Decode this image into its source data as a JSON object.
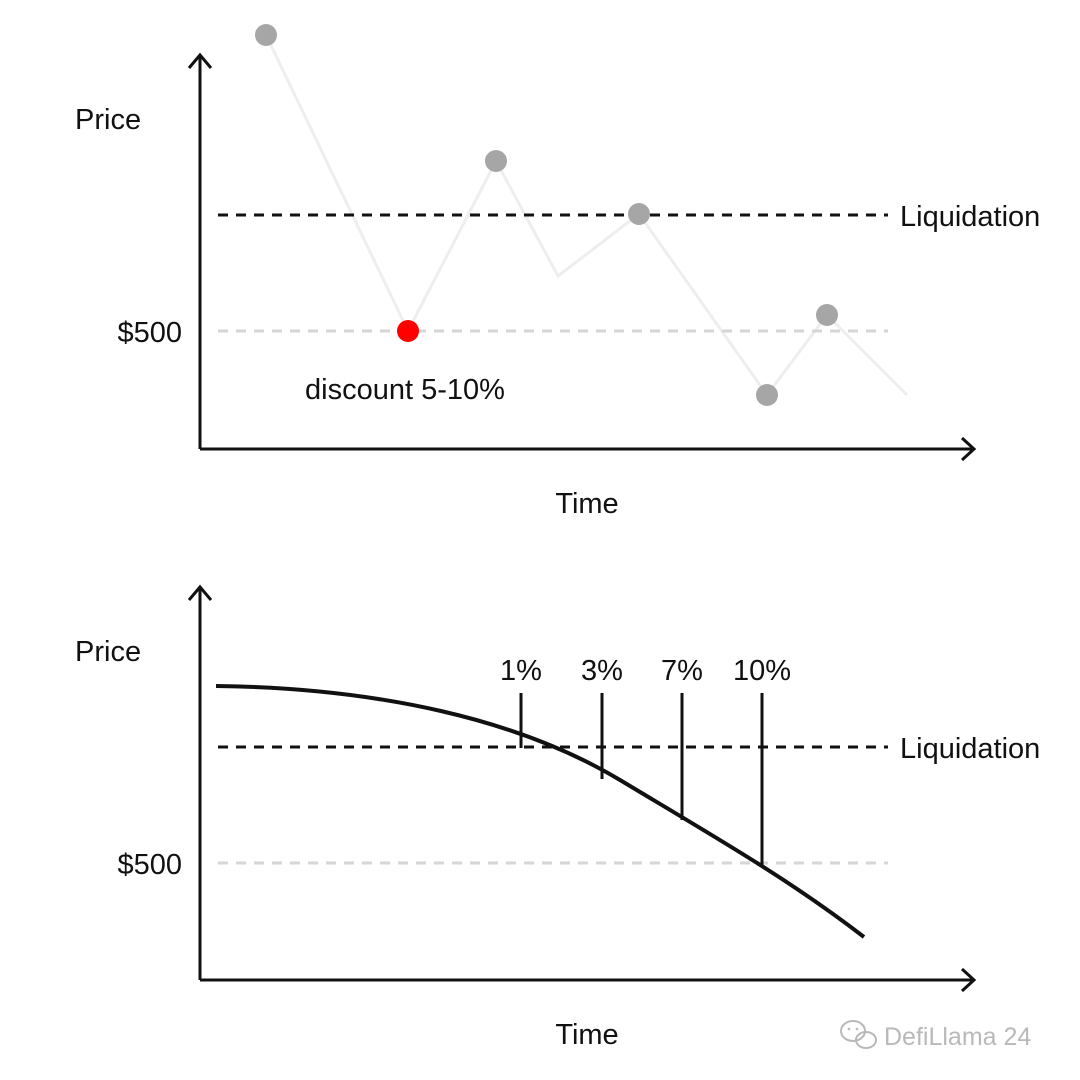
{
  "colors": {
    "axis": "#111111",
    "liquidation_line": "#111111",
    "price_level_line": "#d6d6d6",
    "price_path": "#eeeeee",
    "point": "#a6a6a6",
    "liquidation_point": "#ff0000",
    "watermark": "#b9b9b9"
  },
  "diagram_top": {
    "y_axis_label": "Price",
    "x_axis_label": "Time",
    "price_level_label": "$500",
    "liquidation_label": "Liquidation",
    "annotation": "discount 5-10%"
  },
  "diagram_bottom": {
    "y_axis_label": "Price",
    "x_axis_label": "Time",
    "price_level_label": "$500",
    "liquidation_label": "Liquidation",
    "discount_markers": [
      "1%",
      "3%",
      "7%",
      "10%"
    ]
  },
  "watermark": {
    "icon": "wechat-icon",
    "text": "DefiLlama 24"
  }
}
